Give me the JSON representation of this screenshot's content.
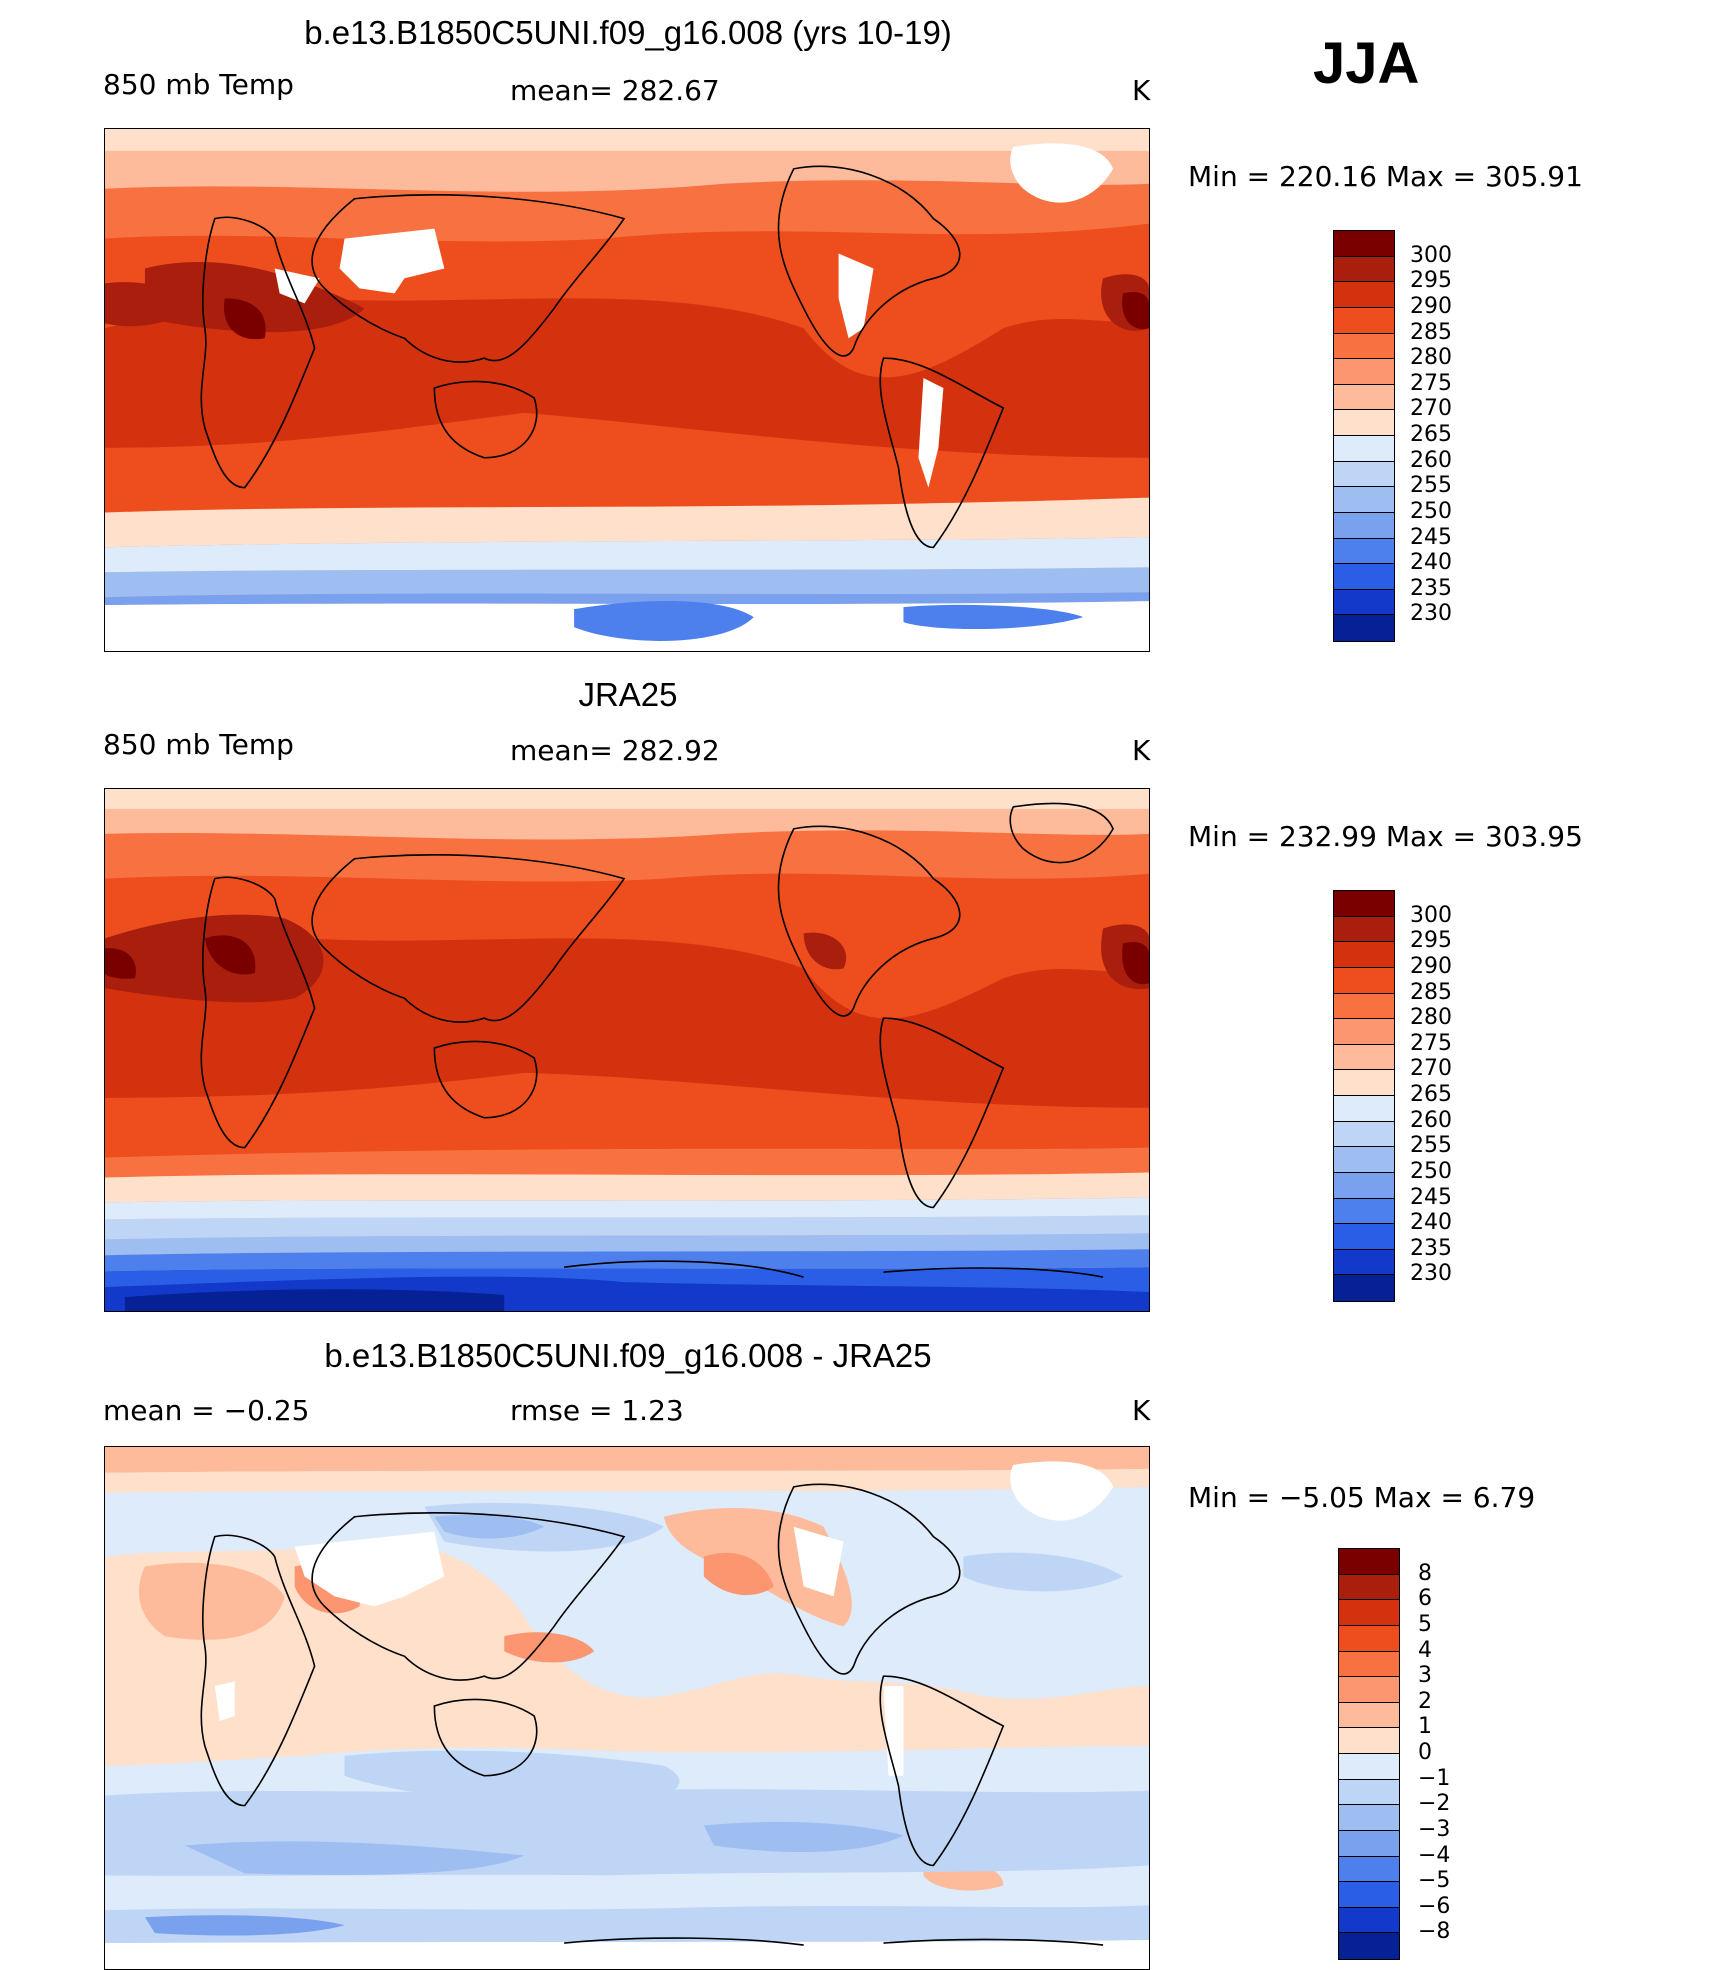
{
  "season": "JJA",
  "panels": [
    {
      "title": "b.e13.B1850C5UNI.f09_g16.008 (yrs 10-19)",
      "left_label": "850 mb Temp",
      "center_label": "mean=  282.67",
      "units": "K",
      "minmax": "Min  =  220.16  Max  =  305.91",
      "colorbar": {
        "labels": [
          "300",
          "295",
          "290",
          "285",
          "280",
          "275",
          "270",
          "265",
          "260",
          "255",
          "250",
          "245",
          "240",
          "235",
          "230"
        ],
        "colors": [
          "#7a0000",
          "#a91e0d",
          "#d4310f",
          "#ee4e1d",
          "#f87241",
          "#fb9670",
          "#fdbb9b",
          "#fee0cb",
          "#ddebfa",
          "#bed5f6",
          "#9ebef2",
          "#7aa1ee",
          "#4d80ec",
          "#2a5ee6",
          "#1239c9",
          "#062196"
        ]
      },
      "map": "model"
    },
    {
      "title": "JRA25",
      "left_label": "850 mb Temp",
      "center_label": "mean=  282.92",
      "units": "K",
      "minmax": "Min  =  232.99  Max  =  303.95",
      "colorbar": {
        "labels": [
          "300",
          "295",
          "290",
          "285",
          "280",
          "275",
          "270",
          "265",
          "260",
          "255",
          "250",
          "245",
          "240",
          "235",
          "230"
        ],
        "colors": [
          "#7a0000",
          "#a91e0d",
          "#d4310f",
          "#ee4e1d",
          "#f87241",
          "#fb9670",
          "#fdbb9b",
          "#fee0cb",
          "#ddebfa",
          "#bed5f6",
          "#9ebef2",
          "#7aa1ee",
          "#4d80ec",
          "#2a5ee6",
          "#1239c9",
          "#062196"
        ]
      },
      "map": "obs"
    },
    {
      "title": "b.e13.B1850C5UNI.f09_g16.008 - JRA25",
      "left_label": "mean  =    −0.25",
      "center_label": "rmse  =     1.23",
      "units": "K",
      "minmax": "Min  =    −5.05  Max  =     6.79",
      "colorbar": {
        "labels": [
          "8",
          "6",
          "5",
          "4",
          "3",
          "2",
          "1",
          "0",
          "−1",
          "−2",
          "−3",
          "−4",
          "−5",
          "−6",
          "−8"
        ],
        "colors": [
          "#7a0000",
          "#a91e0d",
          "#d4310f",
          "#ee4e1d",
          "#f87241",
          "#fb9670",
          "#fdbb9b",
          "#fee0cb",
          "#ddebfa",
          "#bed5f6",
          "#9ebef2",
          "#7aa1ee",
          "#4d80ec",
          "#2a5ee6",
          "#1239c9",
          "#062196"
        ]
      },
      "map": "diff"
    }
  ]
}
